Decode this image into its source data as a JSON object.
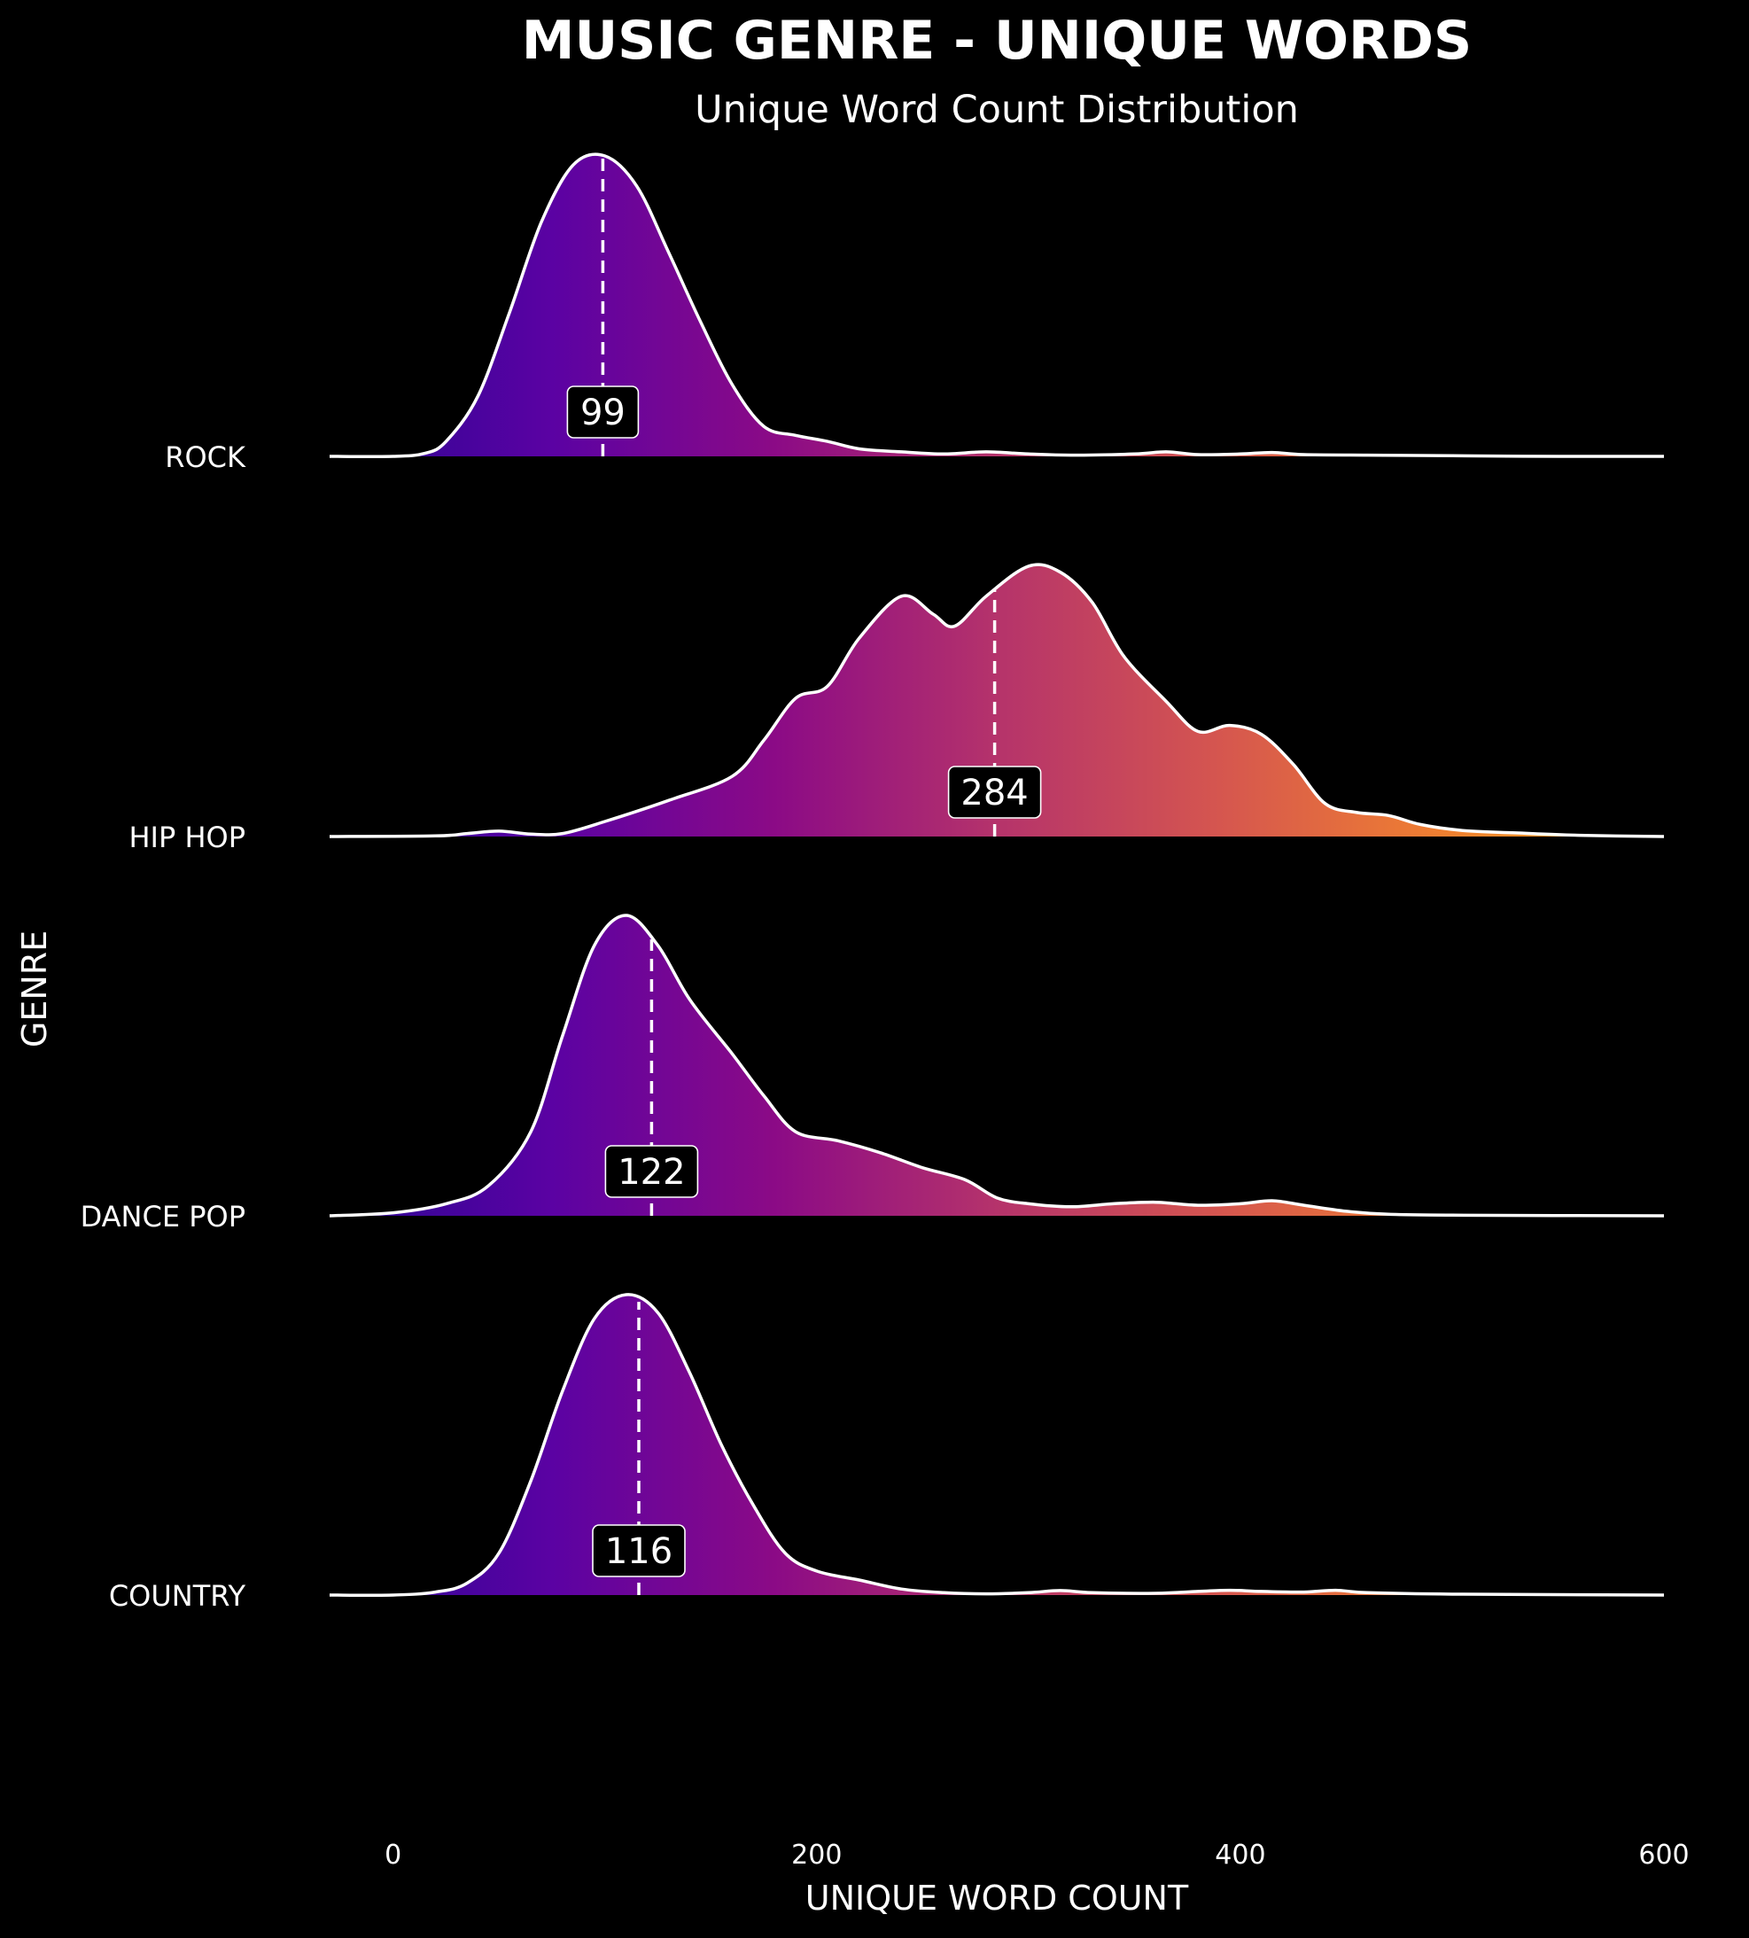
{
  "chart_data": {
    "type": "ridgeline",
    "title": "MUSIC GENRE - UNIQUE WORDS",
    "subtitle": "Unique Word Count Distribution",
    "xlabel": "UNIQUE WORD COUNT",
    "ylabel": "GENRE",
    "xlim": [
      -30,
      600
    ],
    "xticks": [
      0,
      200,
      400,
      600
    ],
    "grid": false,
    "colors": {
      "background": "#000000",
      "text": "#ffffff",
      "line": "#ffffff",
      "gradient": [
        "#2a0593",
        "#5b02a3",
        "#8b0a86",
        "#b5336b",
        "#d5564f",
        "#ef7f31",
        "#fba51d"
      ]
    },
    "series": [
      {
        "name": "ROCK",
        "median": 99,
        "median_label": "99",
        "density": [
          [
            -30,
            0
          ],
          [
            0,
            0
          ],
          [
            15,
            0.01
          ],
          [
            25,
            0.05
          ],
          [
            40,
            0.2
          ],
          [
            55,
            0.48
          ],
          [
            70,
            0.78
          ],
          [
            85,
            0.97
          ],
          [
            100,
            1.0
          ],
          [
            115,
            0.9
          ],
          [
            130,
            0.68
          ],
          [
            145,
            0.45
          ],
          [
            160,
            0.24
          ],
          [
            175,
            0.1
          ],
          [
            190,
            0.07
          ],
          [
            205,
            0.05
          ],
          [
            220,
            0.025
          ],
          [
            240,
            0.015
          ],
          [
            260,
            0.008
          ],
          [
            280,
            0.015
          ],
          [
            300,
            0.008
          ],
          [
            320,
            0.004
          ],
          [
            350,
            0.008
          ],
          [
            365,
            0.015
          ],
          [
            380,
            0.006
          ],
          [
            400,
            0.008
          ],
          [
            415,
            0.013
          ],
          [
            430,
            0.006
          ],
          [
            460,
            0.004
          ],
          [
            500,
            0.002
          ],
          [
            550,
            0
          ],
          [
            600,
            0
          ]
        ]
      },
      {
        "name": "HIP HOP",
        "median": 284,
        "median_label": "284",
        "density": [
          [
            -30,
            0
          ],
          [
            20,
            0.002
          ],
          [
            35,
            0.01
          ],
          [
            50,
            0.018
          ],
          [
            65,
            0.008
          ],
          [
            80,
            0.01
          ],
          [
            100,
            0.05
          ],
          [
            130,
            0.12
          ],
          [
            160,
            0.2
          ],
          [
            175,
            0.32
          ],
          [
            190,
            0.46
          ],
          [
            205,
            0.5
          ],
          [
            220,
            0.66
          ],
          [
            240,
            0.8
          ],
          [
            255,
            0.74
          ],
          [
            265,
            0.7
          ],
          [
            280,
            0.8
          ],
          [
            300,
            0.9
          ],
          [
            315,
            0.88
          ],
          [
            330,
            0.78
          ],
          [
            345,
            0.6
          ],
          [
            365,
            0.45
          ],
          [
            380,
            0.35
          ],
          [
            395,
            0.37
          ],
          [
            410,
            0.34
          ],
          [
            425,
            0.24
          ],
          [
            440,
            0.11
          ],
          [
            455,
            0.08
          ],
          [
            470,
            0.07
          ],
          [
            485,
            0.04
          ],
          [
            505,
            0.02
          ],
          [
            530,
            0.012
          ],
          [
            560,
            0.004
          ],
          [
            600,
            0
          ]
        ]
      },
      {
        "name": "DANCE POP",
        "median": 122,
        "median_label": "122",
        "density": [
          [
            -30,
            0
          ],
          [
            0,
            0.01
          ],
          [
            25,
            0.04
          ],
          [
            45,
            0.1
          ],
          [
            65,
            0.28
          ],
          [
            80,
            0.6
          ],
          [
            95,
            0.9
          ],
          [
            110,
            1.0
          ],
          [
            125,
            0.9
          ],
          [
            140,
            0.72
          ],
          [
            160,
            0.54
          ],
          [
            175,
            0.4
          ],
          [
            190,
            0.28
          ],
          [
            210,
            0.25
          ],
          [
            230,
            0.21
          ],
          [
            250,
            0.16
          ],
          [
            270,
            0.12
          ],
          [
            285,
            0.06
          ],
          [
            300,
            0.04
          ],
          [
            320,
            0.03
          ],
          [
            340,
            0.04
          ],
          [
            360,
            0.045
          ],
          [
            380,
            0.035
          ],
          [
            400,
            0.04
          ],
          [
            415,
            0.05
          ],
          [
            430,
            0.035
          ],
          [
            450,
            0.015
          ],
          [
            470,
            0.005
          ],
          [
            500,
            0.002
          ],
          [
            600,
            0
          ]
        ]
      },
      {
        "name": "COUNTRY",
        "median": 116,
        "median_label": "116",
        "density": [
          [
            -30,
            0
          ],
          [
            0,
            0
          ],
          [
            20,
            0.01
          ],
          [
            35,
            0.04
          ],
          [
            50,
            0.14
          ],
          [
            65,
            0.38
          ],
          [
            80,
            0.68
          ],
          [
            95,
            0.92
          ],
          [
            110,
            1.0
          ],
          [
            125,
            0.94
          ],
          [
            140,
            0.74
          ],
          [
            155,
            0.5
          ],
          [
            170,
            0.3
          ],
          [
            185,
            0.14
          ],
          [
            200,
            0.08
          ],
          [
            220,
            0.05
          ],
          [
            240,
            0.02
          ],
          [
            260,
            0.008
          ],
          [
            280,
            0.004
          ],
          [
            300,
            0.008
          ],
          [
            315,
            0.015
          ],
          [
            330,
            0.008
          ],
          [
            360,
            0.006
          ],
          [
            380,
            0.012
          ],
          [
            395,
            0.016
          ],
          [
            410,
            0.012
          ],
          [
            430,
            0.01
          ],
          [
            445,
            0.016
          ],
          [
            460,
            0.008
          ],
          [
            500,
            0.003
          ],
          [
            600,
            0
          ]
        ]
      }
    ]
  }
}
